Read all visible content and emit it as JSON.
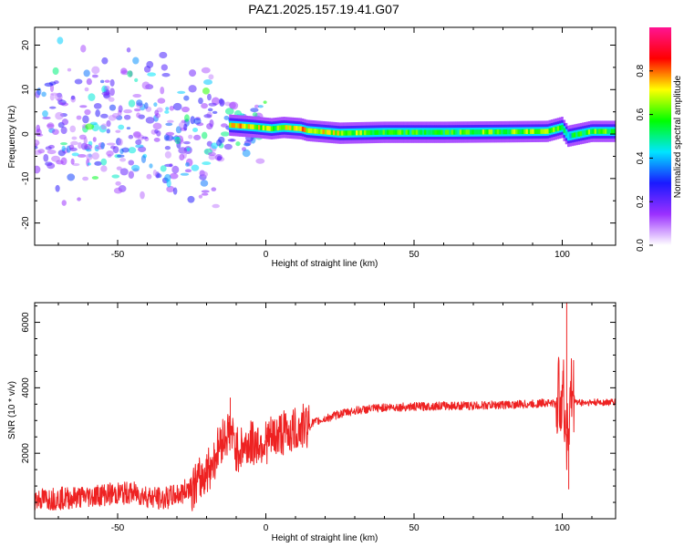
{
  "title": "PAZ1.2025.157.19.41.G07",
  "chart_data": [
    {
      "type": "heatmap",
      "xlabel": "Height of straight line (km)",
      "ylabel": "Frequency (Hz)",
      "xlim": [
        -78,
        118
      ],
      "ylim": [
        -25,
        24
      ],
      "xticks": [
        -50,
        0,
        50,
        100
      ],
      "yticks": [
        -20,
        -10,
        0,
        10,
        20
      ],
      "colorbar": {
        "label": "Normalized spectral amplitude",
        "range": [
          0,
          1
        ],
        "ticks": [
          0.0,
          0.2,
          0.4,
          0.6,
          0.8
        ],
        "colors": [
          "#ffffff",
          "#9b30ff",
          "#1a1aff",
          "#00e5ff",
          "#00ff00",
          "#ffff00",
          "#ff0000",
          "#ff1493"
        ]
      },
      "ridge": [
        {
          "x": -12,
          "freq": 2.0,
          "amp": 0.75
        },
        {
          "x": -4,
          "freq": 1.6,
          "amp": 0.7
        },
        {
          "x": 2,
          "freq": 1.2,
          "amp": 0.6
        },
        {
          "x": 6,
          "freq": 1.5,
          "amp": 0.65
        },
        {
          "x": 12,
          "freq": 1.2,
          "amp": 0.75
        },
        {
          "x": 14,
          "freq": 0.8,
          "amp": 0.7
        },
        {
          "x": 25,
          "freq": 0.2,
          "amp": 0.65
        },
        {
          "x": 40,
          "freq": 0.4,
          "amp": 0.55
        },
        {
          "x": 60,
          "freq": 0.4,
          "amp": 0.55
        },
        {
          "x": 80,
          "freq": 0.5,
          "amp": 0.6
        },
        {
          "x": 95,
          "freq": 0.6,
          "amp": 0.65
        },
        {
          "x": 100,
          "freq": 1.5,
          "amp": 0.5
        },
        {
          "x": 102,
          "freq": -0.5,
          "amp": 0.45
        },
        {
          "x": 110,
          "freq": 0.6,
          "amp": 0.6
        },
        {
          "x": 118,
          "freq": 0.6,
          "amp": 0.55
        }
      ]
    },
    {
      "type": "line",
      "xlabel": "Height of straight line (km)",
      "ylabel": "SNR (10 * v/v)",
      "xlim": [
        -78,
        118
      ],
      "ylim": [
        0,
        6600
      ],
      "xticks": [
        -50,
        0,
        50,
        100
      ],
      "yticks": [
        2000,
        4000,
        6000
      ],
      "color": "#ee2222",
      "series": [
        {
          "x": [
            -78,
            -65,
            -55,
            -45,
            -35,
            -28,
            -22,
            -18,
            -15,
            -12,
            -10,
            -5,
            0,
            5,
            10,
            15,
            20,
            25,
            30,
            40,
            50,
            60,
            70,
            80,
            90,
            95,
            98,
            100,
            101,
            102,
            103,
            105,
            110,
            118
          ],
          "values": [
            450,
            500,
            600,
            650,
            450,
            650,
            1200,
            1700,
            2400,
            2700,
            2100,
            2300,
            2350,
            2600,
            2700,
            2900,
            3050,
            3200,
            3300,
            3400,
            3420,
            3450,
            3450,
            3480,
            3500,
            3550,
            3500,
            4000,
            3000,
            2500,
            3800,
            3550,
            3550,
            3560
          ]
        }
      ],
      "spikes": [
        {
          "x": -12,
          "value": 3700
        },
        {
          "x": 101.5,
          "value": 6600
        },
        {
          "x": 102.2,
          "value": 900
        }
      ]
    }
  ]
}
